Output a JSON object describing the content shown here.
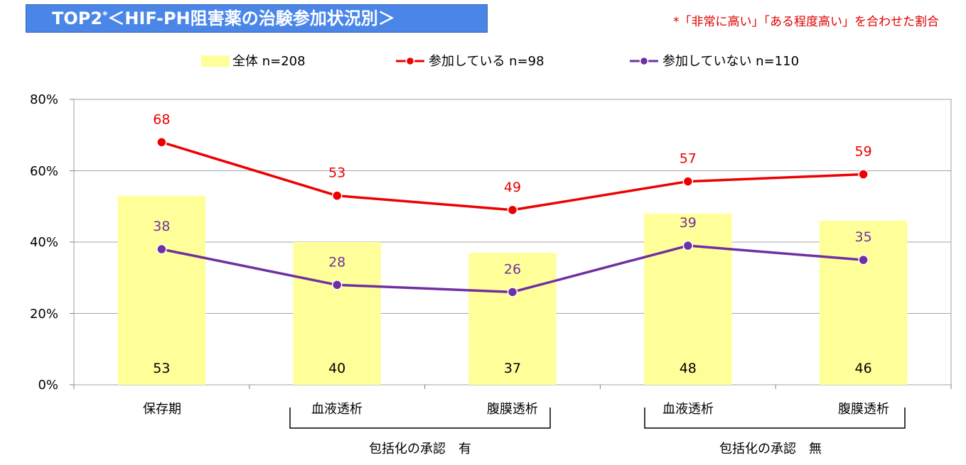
{
  "header": {
    "title": "TOP2",
    "title_star": "*",
    "title_rest": "＜HIF-PH阻害薬の治験参加状況別＞",
    "note": "*「非常に高い」「ある程度高い」を合わせた割合"
  },
  "colors": {
    "title_bg": "#4a86e8",
    "bar": "#ffff99",
    "participating": "#ee0000",
    "not_participating": "#7030a0",
    "note": "#e00000"
  },
  "chart_data": {
    "type": "bar",
    "categories": [
      "保存期",
      "血液透析",
      "腹膜透析",
      "血液透析",
      "腹膜透析"
    ],
    "groups": [
      {
        "label": "包括化の承認　有",
        "categories": [
          1,
          2
        ]
      },
      {
        "label": "包括化の承認　無",
        "categories": [
          3,
          4
        ]
      }
    ],
    "series": [
      {
        "name": "全体 n=208",
        "kind": "bar",
        "values": [
          53,
          40,
          37,
          48,
          46
        ],
        "labels": [
          "53",
          "40",
          "37",
          "48",
          "46"
        ]
      },
      {
        "name": "参加している n=98",
        "kind": "line",
        "values": [
          68,
          53,
          49,
          57,
          59
        ],
        "labels": [
          "68",
          "53",
          "49",
          "57",
          "59"
        ]
      },
      {
        "name": "参加していない n=110",
        "kind": "line",
        "values": [
          38,
          28,
          26,
          39,
          35
        ],
        "labels": [
          "38",
          "28",
          "26",
          "39",
          "35"
        ]
      }
    ],
    "yticks": [
      "0%",
      "20%",
      "40%",
      "60%",
      "80%"
    ],
    "ylim": [
      0,
      80
    ],
    "grid": true,
    "legend": "top"
  }
}
